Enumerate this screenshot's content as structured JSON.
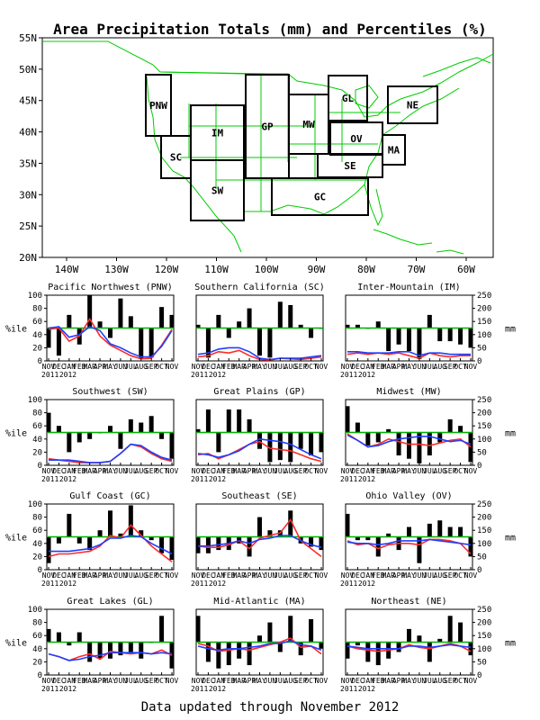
{
  "title": "Area Precipitation Totals (mm) and Percentiles (%)",
  "footer": "Data updated through November 2012",
  "colors": {
    "bar": "#000000",
    "red_line": "#ff2a2a",
    "blue_line": "#1f3fff",
    "green_line": "#00b000",
    "region_label": "#1e3cff",
    "map_lines": "#00cc00"
  },
  "map": {
    "lat_labels": [
      "55N",
      "50N",
      "45N",
      "40N",
      "35N",
      "30N",
      "25N",
      "20N"
    ],
    "lon_labels": [
      "140W",
      "130W",
      "120W",
      "110W",
      "100W",
      "90W",
      "80W",
      "70W",
      "60W"
    ],
    "regions": [
      "PNW",
      "SC",
      "IM",
      "SW",
      "GP",
      "MW",
      "GL",
      "OV",
      "SE",
      "GC",
      "MA",
      "NE"
    ]
  },
  "chart_data": [
    {
      "type": "bar+line",
      "title": "Pacific Northwest (PNW)",
      "ylabel": "%ile",
      "y2label": "mm",
      "ylim": [
        0,
        100
      ],
      "y2lim": [
        0,
        250
      ],
      "x": [
        "NOV 2011",
        "DEC",
        "JAN 2012",
        "FEB",
        "MAR",
        "APR",
        "MAY",
        "JUN",
        "JUL",
        "AUG",
        "SEP",
        "OCT",
        "NOV"
      ],
      "percentile_bars": [
        20,
        8,
        70,
        25,
        100,
        60,
        35,
        95,
        68,
        3,
        5,
        82,
        70
      ],
      "series": [
        {
          "values": [
            120,
            125,
            75,
            95,
            160,
            95,
            60,
            40,
            20,
            8,
            10,
            60,
            120
          ]
        },
        {
          "values": [
            125,
            130,
            90,
            100,
            130,
            115,
            65,
            50,
            30,
            15,
            15,
            55,
            115
          ]
        }
      ]
    },
    {
      "type": "bar+line",
      "title": "Southern California (SC)",
      "ylabel": "%ile",
      "y2label": "mm",
      "ylim": [
        0,
        100
      ],
      "y2lim": [
        0,
        250
      ],
      "x": [
        "NOV 2011",
        "DEC",
        "JAN 2012",
        "FEB",
        "MAR",
        "APR",
        "MAY",
        "JUN",
        "JUL",
        "AUG",
        "SEP",
        "OCT",
        "NOV"
      ],
      "percentile_bars": [
        55,
        5,
        70,
        35,
        60,
        80,
        8,
        5,
        90,
        85,
        55,
        35,
        50
      ],
      "series": [
        {
          "values": [
            15,
            20,
            35,
            30,
            40,
            20,
            5,
            3,
            10,
            8,
            5,
            10,
            15
          ]
        },
        {
          "values": [
            25,
            30,
            45,
            50,
            50,
            35,
            10,
            5,
            10,
            10,
            10,
            15,
            20
          ]
        }
      ]
    },
    {
      "type": "bar+line",
      "title": "Inter-Mountain (IM)",
      "ylabel": "%ile",
      "y2label": "mm",
      "ylim": [
        0,
        100
      ],
      "y2lim": [
        0,
        250
      ],
      "x": [
        "NOV 2011",
        "DEC",
        "JAN 2012",
        "FEB",
        "MAR",
        "APR",
        "MAY",
        "JUN",
        "JUL",
        "AUG",
        "SEP",
        "OCT",
        "NOV"
      ],
      "percentile_bars": [
        55,
        55,
        50,
        60,
        15,
        25,
        15,
        3,
        70,
        30,
        30,
        25,
        20
      ],
      "series": [
        {
          "values": [
            25,
            30,
            25,
            30,
            25,
            30,
            20,
            10,
            30,
            20,
            15,
            20,
            20
          ]
        },
        {
          "values": [
            35,
            35,
            30,
            30,
            30,
            35,
            35,
            20,
            30,
            30,
            25,
            25,
            25
          ]
        }
      ]
    },
    {
      "type": "bar+line",
      "title": "Southwest (SW)",
      "ylabel": "%ile",
      "y2label": "mm",
      "ylim": [
        0,
        100
      ],
      "y2lim": [
        0,
        250
      ],
      "x": [
        "NOV 2011",
        "DEC",
        "JAN 2012",
        "FEB",
        "MAR",
        "APR",
        "MAY",
        "JUN",
        "JUL",
        "AUG",
        "SEP",
        "OCT",
        "NOV"
      ],
      "percentile_bars": [
        80,
        60,
        20,
        35,
        40,
        50,
        60,
        25,
        70,
        65,
        75,
        40,
        10
      ],
      "series": [
        {
          "values": [
            25,
            20,
            15,
            10,
            10,
            10,
            15,
            45,
            80,
            70,
            45,
            25,
            15
          ]
        },
        {
          "values": [
            20,
            20,
            20,
            15,
            10,
            10,
            15,
            45,
            80,
            75,
            50,
            30,
            20
          ]
        }
      ]
    },
    {
      "type": "bar+line",
      "title": "Great Plains (GP)",
      "ylabel": "%ile",
      "y2label": "mm",
      "ylim": [
        0,
        100
      ],
      "y2lim": [
        0,
        250
      ],
      "x": [
        "NOV 2011",
        "DEC",
        "JAN 2012",
        "FEB",
        "MAR",
        "APR",
        "MAY",
        "JUN",
        "JUL",
        "AUG",
        "SEP",
        "OCT",
        "NOV"
      ],
      "percentile_bars": [
        55,
        85,
        20,
        85,
        85,
        70,
        25,
        5,
        8,
        5,
        25,
        15,
        20
      ],
      "series": [
        {
          "values": [
            40,
            45,
            25,
            40,
            60,
            80,
            90,
            65,
            60,
            55,
            40,
            25,
            15
          ]
        },
        {
          "values": [
            45,
            40,
            30,
            40,
            55,
            80,
            100,
            95,
            90,
            80,
            60,
            40,
            25
          ]
        }
      ]
    },
    {
      "type": "bar+line",
      "title": "Midwest (MW)",
      "ylabel": "%ile",
      "y2label": "mm",
      "ylim": [
        0,
        100
      ],
      "y2lim": [
        0,
        250
      ],
      "x": [
        "NOV 2011",
        "DEC",
        "JAN 2012",
        "FEB",
        "MAR",
        "APR",
        "MAY",
        "JUN",
        "JUL",
        "AUG",
        "SEP",
        "OCT",
        "NOV"
      ],
      "percentile_bars": [
        90,
        65,
        30,
        35,
        55,
        15,
        10,
        3,
        15,
        35,
        70,
        60,
        5
      ],
      "series": [
        {
          "values": [
            120,
            95,
            70,
            80,
            100,
            90,
            80,
            80,
            75,
            85,
            95,
            100,
            70
          ]
        },
        {
          "values": [
            115,
            95,
            70,
            75,
            90,
            100,
            105,
            110,
            110,
            100,
            90,
            95,
            80
          ]
        }
      ]
    },
    {
      "type": "bar+line",
      "title": "Gulf Coast (GC)",
      "ylabel": "%ile",
      "y2label": "mm",
      "ylim": [
        0,
        100
      ],
      "y2lim": [
        0,
        250
      ],
      "x": [
        "NOV 2011",
        "DEC",
        "JAN 2012",
        "FEB",
        "MAR",
        "APR",
        "MAY",
        "JUN",
        "JUL",
        "AUG",
        "SEP",
        "OCT",
        "NOV"
      ],
      "percentile_bars": [
        10,
        40,
        85,
        40,
        30,
        60,
        90,
        55,
        98,
        60,
        45,
        25,
        15
      ],
      "series": [
        {
          "values": [
            50,
            60,
            60,
            65,
            70,
            90,
            130,
            120,
            170,
            130,
            90,
            60,
            30
          ]
        },
        {
          "values": [
            70,
            70,
            70,
            75,
            80,
            95,
            120,
            120,
            130,
            125,
            100,
            80,
            60
          ]
        }
      ]
    },
    {
      "type": "bar+line",
      "title": "Southeast (SE)",
      "ylabel": "%ile",
      "y2label": "mm",
      "ylim": [
        0,
        100
      ],
      "y2lim": [
        0,
        250
      ],
      "x": [
        "NOV 2011",
        "DEC",
        "JAN 2012",
        "FEB",
        "MAR",
        "APR",
        "MAY",
        "JUN",
        "JUL",
        "AUG",
        "SEP",
        "OCT",
        "NOV"
      ],
      "percentile_bars": [
        25,
        25,
        30,
        30,
        40,
        20,
        80,
        60,
        60,
        90,
        40,
        35,
        30
      ],
      "series": [
        {
          "values": [
            90,
            85,
            85,
            95,
            110,
            80,
            120,
            130,
            140,
            190,
            110,
            80,
            50
          ]
        },
        {
          "values": [
            90,
            90,
            95,
            100,
            110,
            100,
            115,
            120,
            130,
            130,
            110,
            95,
            85
          ]
        }
      ]
    },
    {
      "type": "bar+line",
      "title": "Ohio Valley (OV)",
      "ylabel": "%ile",
      "y2label": "mm",
      "ylim": [
        0,
        100
      ],
      "y2lim": [
        0,
        250
      ],
      "x": [
        "NOV 2011",
        "DEC",
        "JAN 2012",
        "FEB",
        "MAR",
        "APR",
        "MAY",
        "JUN",
        "JUL",
        "AUG",
        "SEP",
        "OCT",
        "NOV"
      ],
      "percentile_bars": [
        85,
        45,
        45,
        20,
        55,
        30,
        65,
        10,
        70,
        75,
        65,
        65,
        20
      ],
      "series": [
        {
          "values": [
            110,
            95,
            100,
            80,
            95,
            100,
            100,
            95,
            115,
            115,
            110,
            100,
            60
          ]
        },
        {
          "values": [
            105,
            100,
            100,
            95,
            100,
            110,
            110,
            110,
            115,
            110,
            105,
            100,
            95
          ]
        }
      ]
    },
    {
      "type": "bar+line",
      "title": "Great Lakes (GL)",
      "ylabel": "%ile",
      "y2label": "mm",
      "ylim": [
        0,
        100
      ],
      "y2lim": [
        0,
        250
      ],
      "x": [
        "NOV 2011",
        "DEC",
        "JAN 2012",
        "FEB",
        "MAR",
        "APR",
        "MAY",
        "JUN",
        "JUL",
        "AUG",
        "SEP",
        "OCT",
        "NOV"
      ],
      "percentile_bars": [
        70,
        65,
        45,
        65,
        20,
        25,
        25,
        30,
        35,
        25,
        50,
        90,
        10
      ],
      "series": [
        {
          "values": [
            80,
            70,
            55,
            70,
            80,
            60,
            90,
            85,
            80,
            85,
            80,
            95,
            75
          ]
        },
        {
          "values": [
            80,
            70,
            55,
            60,
            70,
            75,
            85,
            85,
            85,
            85,
            80,
            85,
            80
          ]
        }
      ]
    },
    {
      "type": "bar+line",
      "title": "Mid-Atlantic (MA)",
      "ylabel": "%ile",
      "y2label": "mm",
      "ylim": [
        0,
        100
      ],
      "y2lim": [
        0,
        250
      ],
      "x": [
        "NOV 2011",
        "DEC",
        "JAN 2012",
        "FEB",
        "MAR",
        "APR",
        "MAY",
        "JUN",
        "JUL",
        "AUG",
        "SEP",
        "OCT",
        "NOV"
      ],
      "percentile_bars": [
        90,
        20,
        10,
        15,
        25,
        15,
        60,
        80,
        35,
        90,
        30,
        85,
        40
      ],
      "series": [
        {
          "values": [
            120,
            110,
            90,
            95,
            100,
            95,
            105,
            115,
            125,
            140,
            105,
            110,
            80
          ]
        },
        {
          "values": [
            110,
            100,
            95,
            100,
            100,
            105,
            110,
            120,
            120,
            130,
            115,
            110,
            95
          ]
        }
      ]
    },
    {
      "type": "bar+line",
      "title": "Northeast (NE)",
      "ylabel": "%ile",
      "y2label": "mm",
      "ylim": [
        0,
        100
      ],
      "y2lim": [
        0,
        250
      ],
      "x": [
        "NOV 2011",
        "DEC",
        "JAN 2012",
        "FEB",
        "MAR",
        "APR",
        "MAY",
        "JUN",
        "JUL",
        "AUG",
        "SEP",
        "OCT",
        "NOV"
      ],
      "percentile_bars": [
        25,
        45,
        20,
        15,
        25,
        35,
        70,
        60,
        20,
        55,
        90,
        80,
        30
      ],
      "series": [
        {
          "values": [
            110,
            100,
            95,
            90,
            95,
            100,
            115,
            105,
            100,
            110,
            120,
            110,
            90
          ]
        },
        {
          "values": [
            110,
            105,
            100,
            100,
            100,
            100,
            110,
            110,
            105,
            110,
            115,
            110,
            105
          ]
        }
      ]
    }
  ]
}
